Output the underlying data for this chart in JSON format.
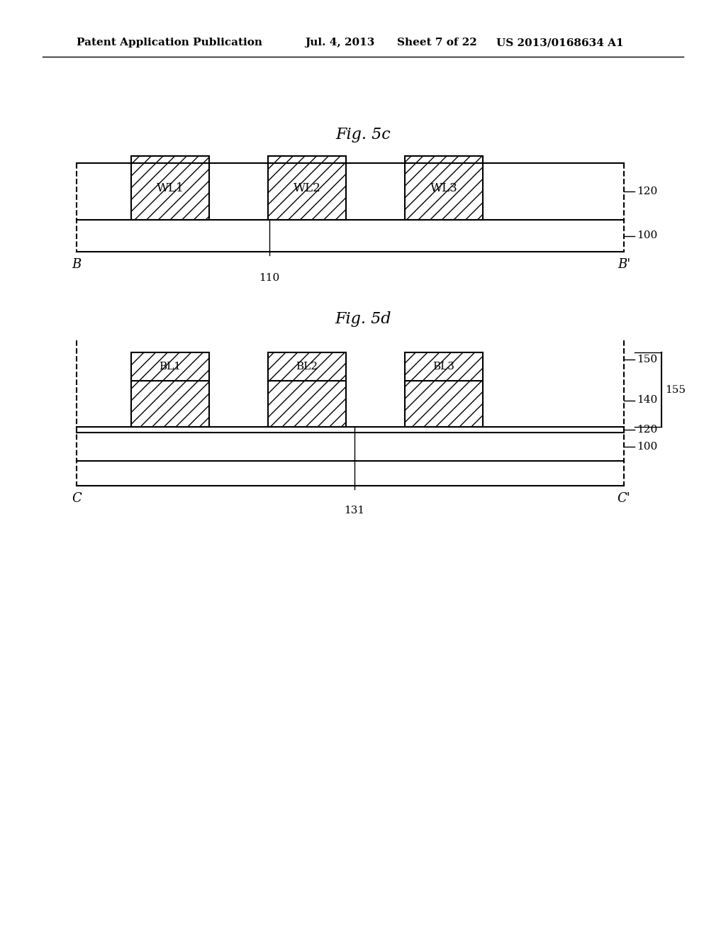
{
  "bg_color": "#ffffff",
  "header_text": "Patent Application Publication",
  "header_date": "Jul. 4, 2013",
  "header_sheet": "Sheet 7 of 22",
  "header_patent": "US 2013/0168634 A1",
  "fig5c_title": "Fig. 5c",
  "fig5d_title": "Fig. 5d",
  "fig5c_labels": [
    "WL1",
    "WL2",
    "WL3"
  ],
  "fig5d_labels_top": [
    "BL1",
    "BL2",
    "BL3"
  ],
  "ref_120": "120",
  "ref_100": "100",
  "ref_110": "110",
  "ref_150": "150",
  "ref_155": "155",
  "ref_140": "140",
  "ref_120d": "120",
  "ref_100d": "100",
  "ref_131": "131",
  "label_B": "B",
  "label_Bp": "B'",
  "label_C": "C",
  "label_Cp": "C'"
}
